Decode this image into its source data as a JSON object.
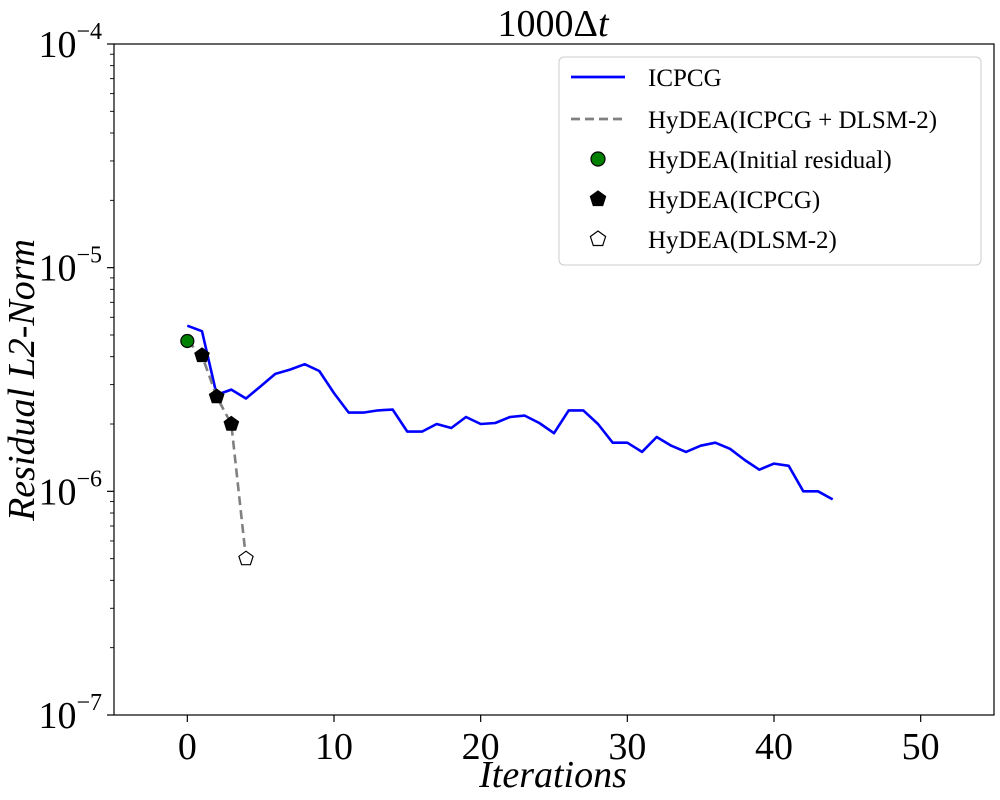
{
  "chart_data": {
    "type": "line",
    "title_base": "1000",
    "title_delta": "Δ",
    "title_var": "t",
    "xlabel": "Iterations",
    "ylabel": "Residual L2-Norm",
    "xlim": [
      -5,
      55
    ],
    "ylim": [
      1e-07,
      0.0001
    ],
    "y_scale": "log",
    "grid": false,
    "legend_position": "top-right",
    "x_ticks": [
      0,
      10,
      20,
      30,
      40,
      50
    ],
    "y_ticks": [
      {
        "value": 1e-07,
        "base": "10",
        "exp": "−7"
      },
      {
        "value": 1e-06,
        "base": "10",
        "exp": "−6"
      },
      {
        "value": 1e-05,
        "base": "10",
        "exp": "−5"
      },
      {
        "value": 0.0001,
        "base": "10",
        "exp": "−4"
      }
    ],
    "series": [
      {
        "name": "ICPCG",
        "style": "solid-line",
        "color": "#0000ff",
        "x": [
          0,
          1,
          2,
          3,
          4,
          5,
          6,
          7,
          8,
          9,
          10,
          11,
          12,
          13,
          14,
          15,
          16,
          17,
          18,
          19,
          20,
          21,
          22,
          23,
          24,
          25,
          26,
          27,
          28,
          29,
          30,
          31,
          32,
          33,
          34,
          35,
          36,
          37,
          38,
          39,
          40,
          41,
          42,
          43,
          44
        ],
        "y": [
          5.5e-06,
          5.2e-06,
          2.7e-06,
          2.85e-06,
          2.6e-06,
          2.95e-06,
          3.35e-06,
          3.5e-06,
          3.7e-06,
          3.45e-06,
          2.75e-06,
          2.25e-06,
          2.25e-06,
          2.3e-06,
          2.32e-06,
          1.85e-06,
          1.85e-06,
          2e-06,
          1.92e-06,
          2.15e-06,
          2e-06,
          2.02e-06,
          2.15e-06,
          2.18e-06,
          2.02e-06,
          1.82e-06,
          2.3e-06,
          2.3e-06,
          2e-06,
          1.65e-06,
          1.65e-06,
          1.5e-06,
          1.75e-06,
          1.6e-06,
          1.5e-06,
          1.6e-06,
          1.65e-06,
          1.55e-06,
          1.38e-06,
          1.25e-06,
          1.33e-06,
          1.3e-06,
          1e-06,
          1e-06,
          9.2e-07
        ]
      },
      {
        "name": "HyDEA(ICPCG + DLSM-2)",
        "style": "dashed-line",
        "color": "#808080",
        "x": [
          0,
          1,
          2,
          3,
          4
        ],
        "y": [
          4.7e-06,
          4.05e-06,
          2.65e-06,
          2e-06,
          5e-07
        ]
      },
      {
        "name": "HyDEA(Initial residual)",
        "style": "circle-marker",
        "color": "#008000",
        "x": [
          0
        ],
        "y": [
          4.7e-06
        ]
      },
      {
        "name": "HyDEA(ICPCG)",
        "style": "filled-pentagon-marker",
        "color": "#000000",
        "x": [
          1,
          2,
          3
        ],
        "y": [
          4.05e-06,
          2.65e-06,
          2e-06
        ]
      },
      {
        "name": "HyDEA(DLSM-2)",
        "style": "open-pentagon-marker",
        "color": "#ffffff",
        "x": [
          4
        ],
        "y": [
          5e-07
        ]
      }
    ]
  }
}
